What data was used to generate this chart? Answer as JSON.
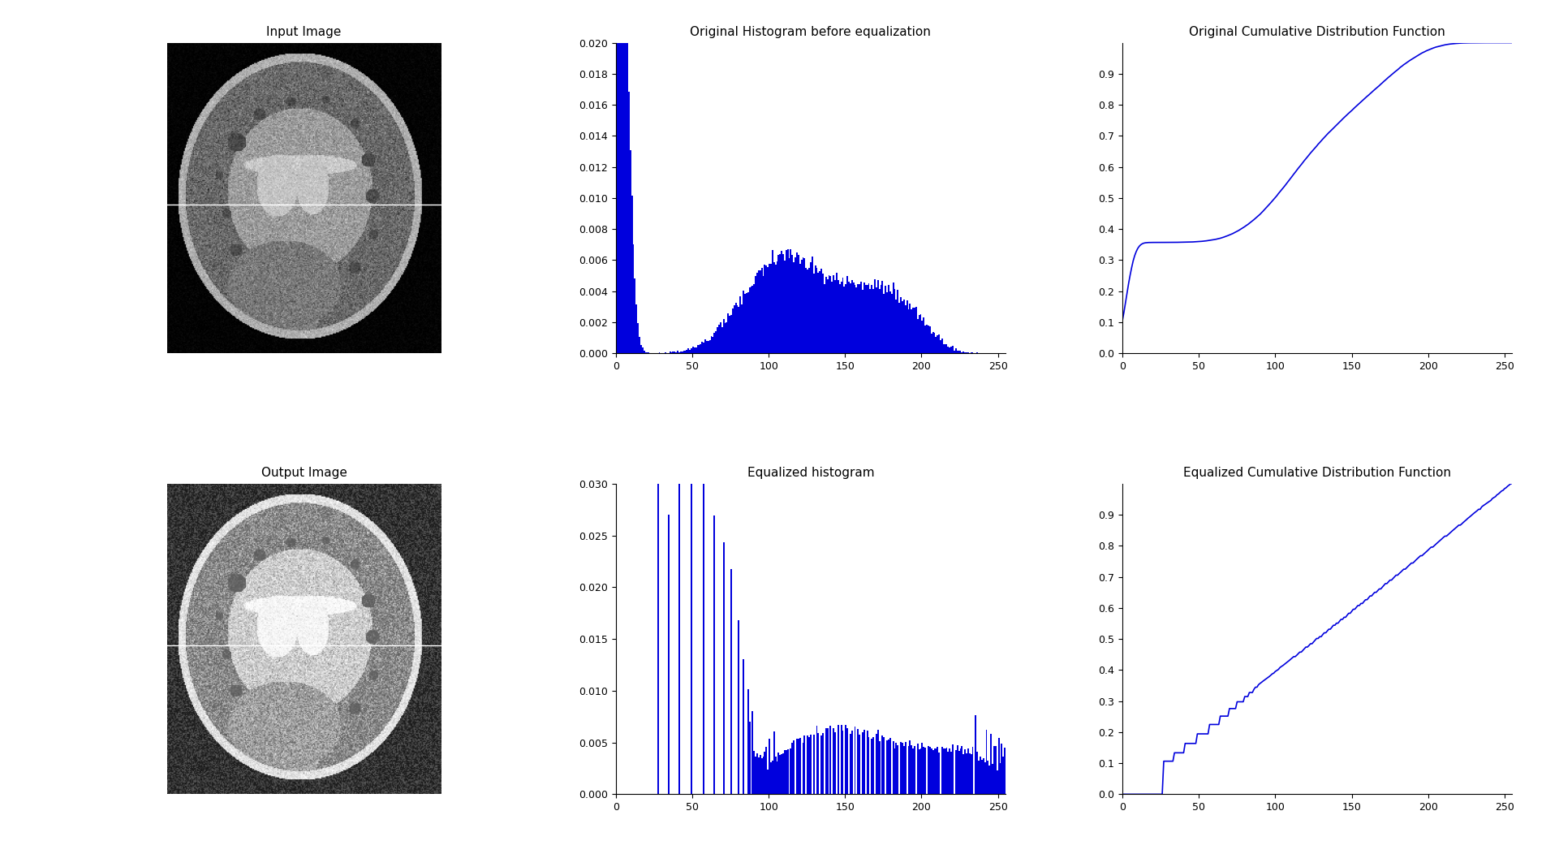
{
  "title_input": "Input Image",
  "title_output": "Output Image",
  "title_hist_orig": "Original Histogram before equalization",
  "title_hist_eq": "Equalized histogram",
  "title_cdf_orig": "Original Cumulative Distribution Function",
  "title_cdf_eq": "Equalized Cumulative Distribution Function",
  "hist_color": "#0000DD",
  "cdf_color": "#0000DD",
  "line_color": "#FFFFFF",
  "background_color": "#FFFFFF",
  "fig_width": 19.21,
  "fig_height": 10.52,
  "xlim": [
    0,
    255
  ],
  "orig_hist_ylim": [
    0,
    0.02
  ],
  "eq_hist_ylim": [
    0,
    0.03
  ],
  "cdf_ylim": [
    0,
    1.0
  ],
  "orig_hist_yticks": [
    0,
    0.002,
    0.004,
    0.006,
    0.008,
    0.01,
    0.012,
    0.014,
    0.016,
    0.018,
    0.02
  ],
  "eq_hist_yticks": [
    0,
    0.005,
    0.01,
    0.015,
    0.02,
    0.025,
    0.03
  ],
  "cdf_orig_yticks": [
    0,
    0.1,
    0.2,
    0.3,
    0.4,
    0.5,
    0.6,
    0.7,
    0.8,
    0.9
  ],
  "cdf_eq_yticks": [
    0,
    0.1,
    0.2,
    0.3,
    0.4,
    0.5,
    0.6,
    0.7,
    0.8,
    0.9
  ],
  "xticks": [
    0,
    50,
    100,
    150,
    200,
    250
  ],
  "title_fontsize": 11,
  "tick_fontsize": 9
}
